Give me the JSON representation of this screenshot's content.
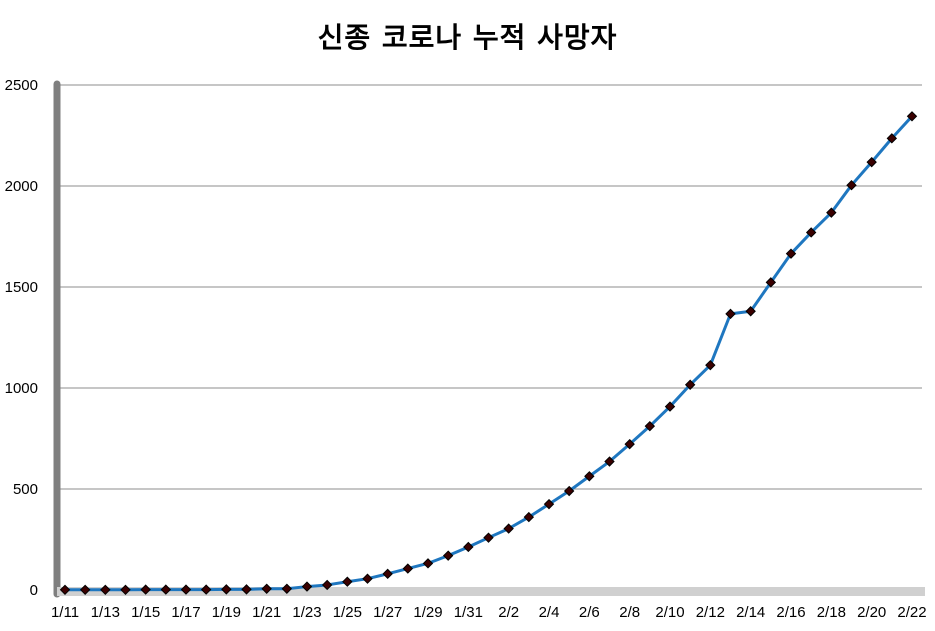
{
  "chart_data": {
    "type": "line",
    "title": "신종 코로나 누적 사망자",
    "xlabel": "",
    "ylabel": "",
    "ylim": [
      0,
      2500
    ],
    "yticks": [
      0,
      500,
      1000,
      1500,
      2000,
      2500
    ],
    "grid": true,
    "legend": "none",
    "x": [
      "1/11",
      "1/12",
      "1/13",
      "1/14",
      "1/15",
      "1/16",
      "1/17",
      "1/18",
      "1/19",
      "1/20",
      "1/21",
      "1/22",
      "1/23",
      "1/24",
      "1/25",
      "1/26",
      "1/27",
      "1/28",
      "1/29",
      "1/30",
      "1/31",
      "2/1",
      "2/2",
      "2/3",
      "2/4",
      "2/5",
      "2/6",
      "2/7",
      "2/8",
      "2/9",
      "2/10",
      "2/11",
      "2/12",
      "2/13",
      "2/14",
      "2/15",
      "2/16",
      "2/17",
      "2/18",
      "2/19",
      "2/20",
      "2/21",
      "2/22"
    ],
    "xtick_labels": [
      "1/11",
      "1/13",
      "1/15",
      "1/17",
      "1/19",
      "1/21",
      "1/23",
      "1/25",
      "1/27",
      "1/29",
      "1/31",
      "2/2",
      "2/4",
      "2/6",
      "2/8",
      "2/10",
      "2/12",
      "2/14",
      "2/16",
      "2/18",
      "2/20",
      "2/22"
    ],
    "series": [
      {
        "values": [
          1,
          1,
          1,
          1,
          2,
          2,
          2,
          2,
          3,
          3,
          6,
          6,
          17,
          25,
          41,
          56,
          80,
          106,
          132,
          170,
          213,
          259,
          304,
          361,
          425,
          490,
          563,
          636,
          722,
          811,
          908,
          1016,
          1113,
          1367,
          1380,
          1523,
          1665,
          1770,
          1868,
          2004,
          2118,
          2236,
          2345
        ]
      }
    ],
    "colors": {
      "line": "#1f77c0",
      "marker": "#3a0000",
      "marker_edge": "#000000",
      "grid": "#8c8c8c",
      "axis": "#7f7f7f"
    }
  }
}
